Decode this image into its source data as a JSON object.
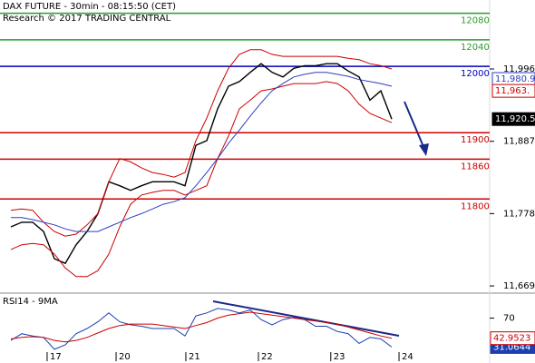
{
  "chart_data": [
    {
      "type": "line",
      "title": "DAX FUTURE - 30min - 08:15:50 (CET)",
      "subtitle": "Research © 2017 TRADING CENTRAL",
      "x": [
        1,
        2,
        3,
        4,
        5,
        6,
        7,
        8,
        9,
        10,
        11,
        12,
        13,
        14,
        15,
        16,
        17,
        18,
        19,
        20,
        21,
        22,
        23,
        24,
        25,
        26,
        27,
        28,
        29,
        30,
        31,
        32,
        33,
        34,
        35,
        36
      ],
      "series": [
        {
          "color": "#000000",
          "values": [
            11758,
            11765,
            11765,
            11751,
            11710,
            11703,
            11731,
            11751,
            11778,
            11826,
            11820,
            11813,
            11820,
            11826,
            11826,
            11826,
            11820,
            11881,
            11888,
            11936,
            11970,
            11977,
            11991,
            12004,
            11991,
            11984,
            11997,
            12001,
            12001,
            12004,
            12004,
            11993,
            11984,
            11949,
            11963,
            11920.5
          ]
        },
        {
          "color": "#cc0000",
          "values": [
            11783,
            11785,
            11783,
            11765,
            11751,
            11744,
            11747,
            11761,
            11778,
            11826,
            11861,
            11856,
            11847,
            11840,
            11837,
            11833,
            11840,
            11888,
            11922,
            11963,
            11997,
            12018,
            12025,
            12025,
            12018,
            12015,
            12015,
            12015,
            12015,
            12015,
            12015,
            12012,
            12010,
            12004,
            12001,
            11996
          ]
        },
        {
          "color": "#cc0000",
          "values": [
            11724,
            11731,
            11733,
            11731,
            11717,
            11696,
            11683,
            11683,
            11692,
            11717,
            11758,
            11792,
            11806,
            11810,
            11813,
            11813,
            11806,
            11813,
            11820,
            11861,
            11895,
            11936,
            11949,
            11963,
            11966,
            11970,
            11974,
            11974,
            11974,
            11977,
            11974,
            11963,
            11943,
            11929,
            11922,
            11915
          ]
        },
        {
          "color": "#2a3fc0",
          "values": [
            11772,
            11772,
            11769,
            11765,
            11761,
            11755,
            11751,
            11751,
            11751,
            11758,
            11765,
            11772,
            11778,
            11785,
            11792,
            11796,
            11802,
            11820,
            11840,
            11861,
            11884,
            11904,
            11925,
            11945,
            11963,
            11974,
            11984,
            11988,
            11991,
            11991,
            11988,
            11985,
            11980,
            11977,
            11974,
            11970
          ]
        }
      ],
      "xlim": [
        0,
        42
      ],
      "ylim": [
        11659.5,
        12100
      ],
      "yticks": [
        {
          "value": 11996,
          "label": "11,996"
        },
        {
          "value": 11887,
          "label": "11,887"
        },
        {
          "value": 11778,
          "label": "11,778"
        },
        {
          "value": 11669,
          "label": "11,669"
        }
      ],
      "levels": [
        {
          "value": 12080,
          "color": "#2e9a2e"
        },
        {
          "value": 12040,
          "color": "#2e9a2e"
        },
        {
          "value": 12000,
          "color": "#0000bb"
        },
        {
          "value": 11900,
          "color": "#cc0000"
        },
        {
          "value": 11860,
          "color": "#cc0000"
        },
        {
          "value": 11800,
          "color": "#cc0000"
        }
      ],
      "price_tags": [
        {
          "value": 11980.9,
          "label": "11,980.9",
          "color": "#2a3fc0"
        },
        {
          "value": 11963,
          "label": "11,963.",
          "color": "#cc0000"
        },
        {
          "value": 11920.5,
          "label": "11,920.5",
          "color": "#000000"
        }
      ]
    },
    {
      "type": "line",
      "title": "RSI14 - 9MA",
      "x": [
        1,
        2,
        3,
        4,
        5,
        6,
        7,
        8,
        9,
        10,
        11,
        12,
        13,
        14,
        15,
        16,
        17,
        18,
        19,
        20,
        21,
        22,
        23,
        24,
        25,
        26,
        27,
        28,
        29,
        30,
        31,
        32,
        33,
        34,
        35,
        36
      ],
      "series": [
        {
          "color": "#1a3fb0",
          "tagged": true,
          "values": [
            40,
            49,
            46,
            44,
            28,
            34,
            49,
            56,
            65,
            77,
            65,
            61,
            59,
            56,
            56,
            56,
            46,
            73,
            77,
            83,
            81,
            77,
            81,
            68,
            61,
            68,
            71,
            68,
            59,
            59,
            52,
            49,
            36,
            44,
            42,
            31.0644
          ]
        },
        {
          "color": "#cc0000",
          "tagged": true,
          "values": [
            42,
            44,
            45,
            44,
            40,
            38,
            40,
            44,
            50,
            56,
            60,
            62,
            62,
            62,
            60,
            58,
            56,
            60,
            64,
            70,
            74,
            76,
            78,
            76,
            74,
            72,
            70,
            68,
            66,
            64,
            62,
            58,
            54,
            50,
            46,
            42.9523
          ]
        }
      ],
      "xlim": [
        0,
        42
      ],
      "ylim": [
        12,
        100
      ],
      "yticks": [
        70
      ],
      "xticks": [
        {
          "value": 4.33,
          "label": "17"
        },
        {
          "value": 10.67,
          "label": "20"
        },
        {
          "value": 17.08,
          "label": "21"
        },
        {
          "value": 23.75,
          "label": "22"
        },
        {
          "value": 30.4,
          "label": "23"
        },
        {
          "value": 36.67,
          "label": "24"
        }
      ]
    }
  ]
}
